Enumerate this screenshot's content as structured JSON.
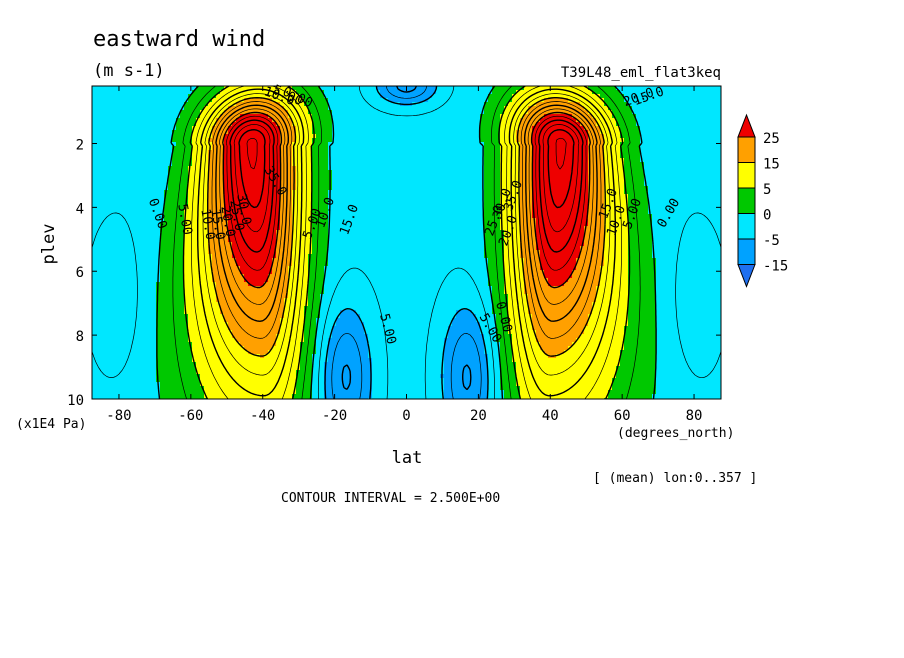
{
  "chart_data": {
    "type": "heatmap",
    "subtype": "latitude-pressure filled contour",
    "title": "eastward wind",
    "units": "(m s-1)",
    "run_label": "T39L48_eml_flat3keq",
    "xlabel": "lat",
    "xunits": "(degrees_north)",
    "ylabel": "plev",
    "yunits": "(x1E4 Pa)",
    "x_range": [
      -87.5,
      87.5
    ],
    "y_range": [
      10,
      0
    ],
    "x_ticks": [
      -80,
      -60,
      -40,
      -20,
      0,
      20,
      40,
      60,
      80
    ],
    "x_tick_labels": [
      "-80",
      "-60",
      "-40",
      "-20",
      "0",
      "20",
      "40",
      "60",
      "80"
    ],
    "y_ticks": [
      2,
      4,
      6,
      8,
      10
    ],
    "y_tick_labels": [
      "2",
      "4",
      "6",
      "8",
      "10"
    ],
    "averaging_note": "[ (mean) lon:0..357 ]",
    "contour_interval_note": "CONTOUR INTERVAL = 2.500E+00",
    "colorbar": {
      "levels": [
        -15,
        -5,
        0,
        5,
        15,
        25
      ],
      "tick_labels": [
        "25",
        "15",
        "5",
        "0",
        "-5",
        "-15"
      ],
      "colors": [
        "#1f6ff0",
        "#00a2ff",
        "#00e7ff",
        "#00c800",
        "#ffff00",
        "#ffa000",
        "#ee0000"
      ]
    },
    "field_description": {
      "jets": [
        {
          "lat": -43,
          "plev": 2.0,
          "max": 37.5
        },
        {
          "lat": 43,
          "plev": 2.0,
          "max": 37.5
        }
      ],
      "easterly_minima": [
        {
          "lat": -17,
          "plev": 9.2,
          "min": -10
        },
        {
          "lat": 17,
          "plev": 9.2,
          "min": -10
        },
        {
          "lat": 0,
          "plev": 0.2,
          "min": -10
        }
      ]
    },
    "contour_labels": [
      "0.00",
      "5.00",
      "10.0",
      "15.0",
      "20.0",
      "25.0",
      "30.0",
      "35.0",
      "5.00",
      "10.0",
      "15.0",
      "20.0",
      "25.0",
      "30.0",
      "35.0",
      "15.0",
      "10.0",
      "5.00",
      "0.00",
      "5.00",
      "0.00",
      "5.00",
      "0.00",
      "5.00",
      "10.0",
      "15.0",
      "20.0"
    ]
  }
}
